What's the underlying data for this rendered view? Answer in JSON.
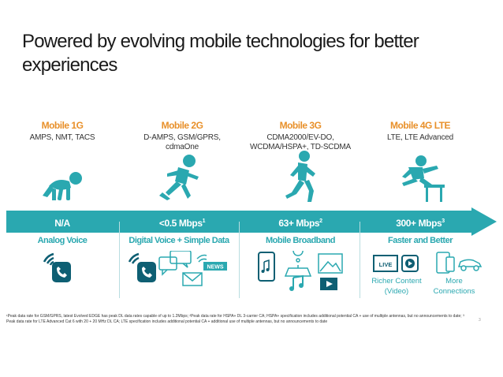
{
  "title": "Powered by evolving mobile technologies for better experiences",
  "generations": [
    {
      "name": "Mobile 1G",
      "techs": "AMPS, NMT, TACS",
      "speed": "N/A",
      "speed_sup": "",
      "use_case": "Analog Voice"
    },
    {
      "name": "Mobile 2G",
      "techs": "D-AMPS, GSM/GPRS, cdmaOne",
      "speed": "<0.5 Mbps",
      "speed_sup": "1",
      "use_case": "Digital Voice + Simple Data"
    },
    {
      "name": "Mobile 3G",
      "techs": "CDMA2000/EV-DO, WCDMA/HSPA+, TD-SCDMA",
      "speed": "63+ Mbps",
      "speed_sup": "2",
      "use_case": "Mobile Broadband"
    },
    {
      "name": "Mobile 4G LTE",
      "techs": "LTE, LTE Advanced",
      "speed": "300+ Mbps",
      "speed_sup": "3",
      "use_case": "Faster and Better"
    }
  ],
  "icons": {
    "live_label": "LIVE",
    "news_label": "NEWS",
    "richer_content": "Richer Content (Video)",
    "more_connections": "More Connections"
  },
  "footnote": "¹Peak data rate for GSM/GPRS, latest Evolved EDGE has peak DL data rates capable of up to 1.2Mbps; ²Peak data rate for HSPA+ DL 3-carrier CA; HSPA+ specification includes additional potential CA + use of multiple antennas, but no announcements to date; ³ Peak data rate for LTE Advanced Cat 6 with 20 + 20 MHz DL CA; LTE specification includes additional potential CA + additional use of multiple antennas, but no announcements to date",
  "page_number": "3",
  "colors": {
    "accent": "#2aa8b0",
    "orange": "#e8902a",
    "figure": "#2aa8b0",
    "dark_icon": "#0e5f73"
  }
}
